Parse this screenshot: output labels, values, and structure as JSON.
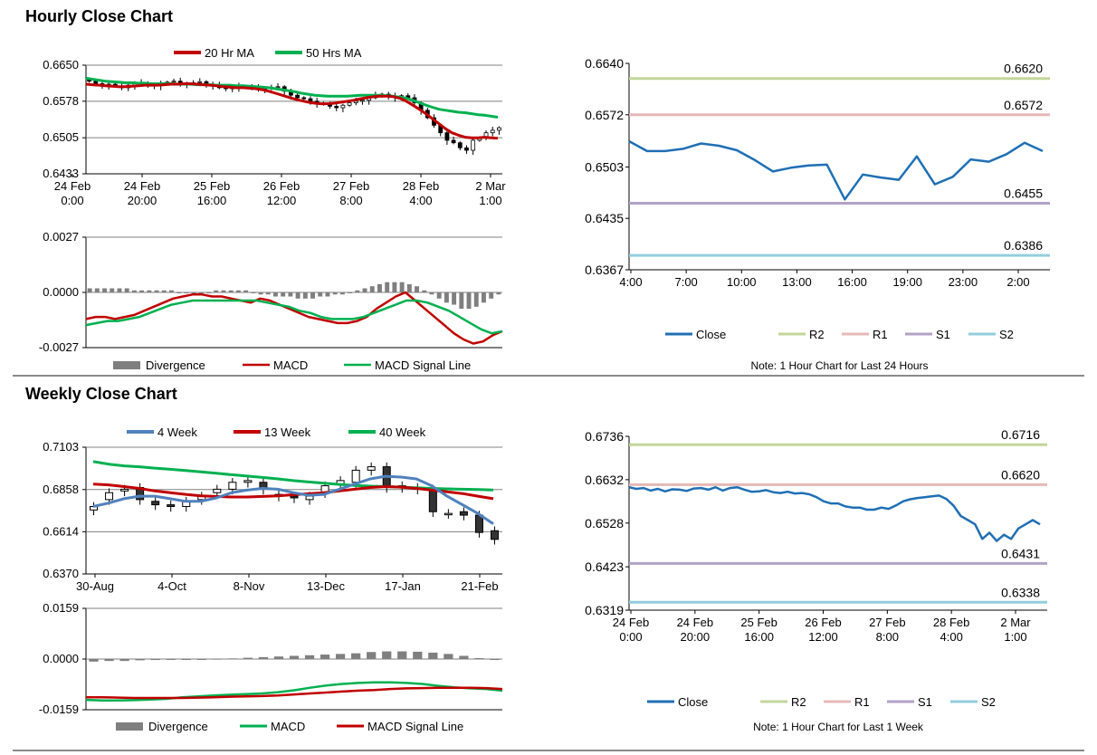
{
  "sections": {
    "hourly_title": "Hourly Close Chart",
    "weekly_title": "Weekly Close Chart"
  },
  "colors": {
    "ma20": "#c00000",
    "ma50": "#00b050",
    "wk4": "#4f81bd",
    "wk13": "#c00000",
    "wk40": "#00b050",
    "close": "#1f6fb4",
    "r2": "#c3d69b",
    "r1": "#e6b9b8",
    "s1": "#b2a2c7",
    "s2": "#93cddd",
    "divergence": "#7f7f7f",
    "macd_red": "#c00000",
    "signal_green": "#00b050"
  },
  "chart_data": [
    {
      "id": "hourly_price",
      "type": "candlestick",
      "title": "",
      "y_ticks": [
        "0.6650",
        "0.6578",
        "0.6505",
        "0.6433"
      ],
      "ylim": [
        0.6433,
        0.665
      ],
      "x_ticks": [
        [
          "24 Feb",
          "0:00"
        ],
        [
          "24 Feb",
          "20:00"
        ],
        [
          "25 Feb",
          "16:00"
        ],
        [
          "26 Feb",
          "12:00"
        ],
        [
          "27 Feb",
          "8:00"
        ],
        [
          "28 Feb",
          "4:00"
        ],
        [
          "2 Mar",
          "1:00"
        ]
      ],
      "legend": [
        "20 Hr MA",
        "50 Hrs MA"
      ],
      "close": [
        0.6618,
        0.6613,
        0.661,
        0.6612,
        0.6608,
        0.6605,
        0.661,
        0.6613,
        0.6615,
        0.661,
        0.6609,
        0.6612,
        0.6616,
        0.6618,
        0.6614,
        0.6613,
        0.6615,
        0.6617,
        0.6612,
        0.661,
        0.6605,
        0.6603,
        0.6606,
        0.6608,
        0.6607,
        0.6605,
        0.6604,
        0.6603,
        0.6606,
        0.6607,
        0.6598,
        0.659,
        0.6585,
        0.6583,
        0.6578,
        0.6574,
        0.6572,
        0.6568,
        0.6565,
        0.657,
        0.6575,
        0.6578,
        0.658,
        0.6585,
        0.659,
        0.6592,
        0.6588,
        0.6586,
        0.6589,
        0.6585,
        0.6575,
        0.656,
        0.6545,
        0.653,
        0.6515,
        0.65,
        0.6495,
        0.6485,
        0.648,
        0.65,
        0.6505,
        0.6515,
        0.652,
        0.6525
      ],
      "ma20": [
        0.6612,
        0.6611,
        0.661,
        0.6609,
        0.6608,
        0.6607,
        0.6607,
        0.6608,
        0.6609,
        0.661,
        0.661,
        0.661,
        0.6611,
        0.6612,
        0.6612,
        0.6613,
        0.6613,
        0.6612,
        0.6611,
        0.661,
        0.6609,
        0.6607,
        0.6606,
        0.6605,
        0.6605,
        0.6604,
        0.6603,
        0.6601,
        0.6598,
        0.6594,
        0.659,
        0.6586,
        0.6582,
        0.6579,
        0.6576,
        0.6574,
        0.6573,
        0.6573,
        0.6574,
        0.6576,
        0.6578,
        0.658,
        0.6583,
        0.6585,
        0.6587,
        0.6588,
        0.6588,
        0.6587,
        0.6584,
        0.6578,
        0.657,
        0.6562,
        0.6553,
        0.6543,
        0.6533,
        0.6523,
        0.6515,
        0.651,
        0.6506,
        0.6505,
        0.6505,
        0.6506,
        0.6505,
        0.6504
      ],
      "ma50": [
        0.6624,
        0.6622,
        0.662,
        0.6618,
        0.6617,
        0.6616,
        0.6615,
        0.6615,
        0.6614,
        0.6614,
        0.6613,
        0.6613,
        0.6613,
        0.6613,
        0.6612,
        0.6612,
        0.6612,
        0.6611,
        0.6611,
        0.6611,
        0.661,
        0.661,
        0.661,
        0.6609,
        0.6609,
        0.6608,
        0.6607,
        0.6606,
        0.6605,
        0.6603,
        0.6601,
        0.6599,
        0.6597,
        0.6594,
        0.6592,
        0.659,
        0.6589,
        0.6588,
        0.6588,
        0.6588,
        0.6588,
        0.6589,
        0.659,
        0.659,
        0.659,
        0.659,
        0.6589,
        0.6588,
        0.6586,
        0.6584,
        0.658,
        0.6575,
        0.657,
        0.6566,
        0.6562,
        0.656,
        0.6558,
        0.6556,
        0.6555,
        0.6553,
        0.6551,
        0.655,
        0.6548,
        0.6546
      ]
    },
    {
      "id": "hourly_macd",
      "type": "line+bar",
      "y_ticks": [
        "0.0027",
        "0.0000",
        "-0.0027"
      ],
      "ylim": [
        -0.0027,
        0.0027
      ],
      "legend": [
        "Divergence",
        "MACD",
        "MACD Signal Line"
      ],
      "divergence": [
        0.0002,
        0.0002,
        0.0002,
        0.0002,
        0.0002,
        0.0002,
        0.0001,
        0.0001,
        0.0001,
        0.0001,
        0.0001,
        0.0001,
        0.0,
        0.0,
        0.0,
        0.0,
        0.0,
        0.0001,
        0.0001,
        0.0001,
        0.0001,
        0.0001,
        0.0,
        -0.0001,
        -0.0001,
        -0.0002,
        -0.0002,
        -0.0002,
        -0.0003,
        -0.0003,
        -0.0003,
        -0.0002,
        -0.0002,
        -0.0001,
        -0.0001,
        0.0,
        0.0001,
        0.0002,
        0.0003,
        0.0004,
        0.0005,
        0.0005,
        0.0005,
        0.0004,
        0.0003,
        0.0001,
        -0.0001,
        -0.0003,
        -0.0005,
        -0.0006,
        -0.0008,
        -0.0008,
        -0.0007,
        -0.0005,
        -0.0003,
        -0.0001
      ],
      "macd": [
        -0.0013,
        -0.0012,
        -0.0012,
        -0.0013,
        -0.0012,
        -0.0011,
        -0.0009,
        -0.0007,
        -0.0005,
        -0.0003,
        -0.0002,
        -0.0001,
        -0.0001,
        -0.0002,
        -0.0002,
        -0.0003,
        -0.0004,
        -0.0005,
        -0.0003,
        -0.0004,
        -0.0006,
        -0.0008,
        -0.001,
        -0.0012,
        -0.0013,
        -0.0014,
        -0.0015,
        -0.0015,
        -0.0014,
        -0.0012,
        -0.0008,
        -0.0005,
        -0.0002,
        0.0,
        -0.0004,
        -0.0008,
        -0.0012,
        -0.0016,
        -0.002,
        -0.0023,
        -0.0025,
        -0.0024,
        -0.0021,
        -0.0019
      ],
      "signal": [
        -0.0016,
        -0.0015,
        -0.0014,
        -0.0014,
        -0.0013,
        -0.0012,
        -0.001,
        -0.0008,
        -0.0006,
        -0.0005,
        -0.0004,
        -0.0004,
        -0.0004,
        -0.0004,
        -0.0004,
        -0.0004,
        -0.0004,
        -0.0005,
        -0.0006,
        -0.0007,
        -0.0009,
        -0.001,
        -0.0012,
        -0.0013,
        -0.0013,
        -0.0013,
        -0.0012,
        -0.001,
        -0.0008,
        -0.0006,
        -0.0004,
        -0.0004,
        -0.0005,
        -0.0007,
        -0.0009,
        -0.0012,
        -0.0015,
        -0.0018,
        -0.002,
        -0.0019
      ]
    },
    {
      "id": "hourly_close",
      "type": "line",
      "y_ticks": [
        "0.6640",
        "0.6572",
        "0.6503",
        "0.6435",
        "0.6367"
      ],
      "ylim": [
        0.6367,
        0.664
      ],
      "x_ticks": [
        "4:00",
        "7:00",
        "10:00",
        "13:00",
        "16:00",
        "19:00",
        "23:00",
        "2:00"
      ],
      "legend": [
        "Close",
        "R2",
        "R1",
        "S1",
        "S2"
      ],
      "levels": {
        "R2": 0.662,
        "R1": 0.6572,
        "S1": 0.6455,
        "S2": 0.6386
      },
      "level_labels": {
        "R2": "0.6620",
        "R1": "0.6572",
        "S1": "0.6455",
        "S2": "0.6386"
      },
      "close": [
        0.6537,
        0.6524,
        0.6524,
        0.6527,
        0.6534,
        0.6531,
        0.6525,
        0.6512,
        0.6497,
        0.6502,
        0.6505,
        0.6506,
        0.646,
        0.6493,
        0.6489,
        0.6486,
        0.6517,
        0.648,
        0.649,
        0.6513,
        0.651,
        0.652,
        0.6535,
        0.6524
      ],
      "note": "Note: 1 Hour Chart for Last 24 Hours"
    },
    {
      "id": "weekly_price",
      "type": "candlestick",
      "y_ticks": [
        "0.7103",
        "0.6858",
        "0.6614",
        "0.6370"
      ],
      "ylim": [
        0.637,
        0.7103
      ],
      "x_ticks": [
        "30-Aug",
        "4-Oct",
        "8-Nov",
        "13-Dec",
        "17-Jan",
        "21-Feb"
      ],
      "legend": [
        "4 Week",
        "13 Week",
        "40 Week"
      ],
      "open": [
        0.674,
        0.68,
        0.685,
        0.687,
        0.679,
        0.677,
        0.676,
        0.68,
        0.684,
        0.686,
        0.69,
        0.69,
        0.683,
        0.682,
        0.68,
        0.684,
        0.689,
        0.69,
        0.697,
        0.699,
        0.688,
        0.687,
        0.686,
        0.672,
        0.673,
        0.671,
        0.662
      ],
      "close": [
        0.676,
        0.684,
        0.686,
        0.68,
        0.677,
        0.676,
        0.679,
        0.682,
        0.686,
        0.69,
        0.691,
        0.686,
        0.682,
        0.681,
        0.682,
        0.688,
        0.691,
        0.697,
        0.699,
        0.687,
        0.687,
        0.686,
        0.673,
        0.672,
        0.671,
        0.661,
        0.657
      ],
      "wk4": [
        0.676,
        0.678,
        0.6805,
        0.682,
        0.682,
        0.6805,
        0.679,
        0.679,
        0.681,
        0.684,
        0.6855,
        0.6865,
        0.686,
        0.684,
        0.6825,
        0.683,
        0.686,
        0.689,
        0.692,
        0.6935,
        0.693,
        0.692,
        0.688,
        0.682,
        0.677,
        0.672,
        0.666
      ],
      "wk13": [
        0.689,
        0.6885,
        0.6875,
        0.6865,
        0.685,
        0.684,
        0.683,
        0.6822,
        0.6818,
        0.6815,
        0.6815,
        0.6818,
        0.6822,
        0.6828,
        0.6834,
        0.684,
        0.685,
        0.686,
        0.687,
        0.6875,
        0.6872,
        0.6865,
        0.6855,
        0.6845,
        0.6835,
        0.682,
        0.6805
      ],
      "wk40": [
        0.702,
        0.7005,
        0.6995,
        0.699,
        0.6982,
        0.6975,
        0.6968,
        0.696,
        0.6952,
        0.6944,
        0.6936,
        0.6928,
        0.692,
        0.691,
        0.6902,
        0.6895,
        0.6888,
        0.6882,
        0.6878,
        0.6875,
        0.6872,
        0.6868,
        0.6865,
        0.6862,
        0.686,
        0.6858,
        0.6856
      ]
    },
    {
      "id": "weekly_macd",
      "type": "line+bar",
      "y_ticks": [
        "0.0159",
        "0.0000",
        "-0.0159"
      ],
      "ylim": [
        -0.0159,
        0.0159
      ],
      "legend": [
        "Divergence",
        "MACD",
        "MACD Signal Line"
      ],
      "divergence": [
        -0.0008,
        -0.0006,
        -0.0006,
        -0.0004,
        -0.0003,
        -0.0002,
        -0.0001,
        0.0,
        0.0001,
        0.0002,
        0.0004,
        0.0006,
        0.0008,
        0.001,
        0.0012,
        0.0014,
        0.0016,
        0.0018,
        0.0022,
        0.0024,
        0.0024,
        0.0023,
        0.002,
        0.0016,
        0.001,
        0.0003,
        -0.0003
      ],
      "macd": [
        -0.0128,
        -0.013,
        -0.013,
        -0.0129,
        -0.0127,
        -0.0125,
        -0.012,
        -0.0117,
        -0.0114,
        -0.0112,
        -0.011,
        -0.0108,
        -0.0104,
        -0.0098,
        -0.009,
        -0.0083,
        -0.0078,
        -0.0075,
        -0.0073,
        -0.0073,
        -0.0075,
        -0.0078,
        -0.0084,
        -0.0089,
        -0.0092,
        -0.0094,
        -0.0099
      ],
      "signal": [
        -0.012,
        -0.012,
        -0.0121,
        -0.0122,
        -0.0122,
        -0.0122,
        -0.0122,
        -0.0121,
        -0.012,
        -0.0118,
        -0.0117,
        -0.0116,
        -0.0114,
        -0.0111,
        -0.0108,
        -0.0105,
        -0.0102,
        -0.0099,
        -0.0097,
        -0.0094,
        -0.0092,
        -0.0091,
        -0.009,
        -0.009,
        -0.009,
        -0.0091,
        -0.0094
      ]
    },
    {
      "id": "weekly_close",
      "type": "line",
      "y_ticks": [
        "0.6736",
        "0.6632",
        "0.6528",
        "0.6423",
        "0.6319"
      ],
      "ylim": [
        0.6319,
        0.6736
      ],
      "x_ticks": [
        [
          "24 Feb",
          "0:00"
        ],
        [
          "24 Feb",
          "20:00"
        ],
        [
          "25 Feb",
          "16:00"
        ],
        [
          "26 Feb",
          "12:00"
        ],
        [
          "27 Feb",
          "8:00"
        ],
        [
          "28 Feb",
          "4:00"
        ],
        [
          "2 Mar",
          "1:00"
        ]
      ],
      "legend": [
        "Close",
        "R2",
        "R1",
        "S1",
        "S2"
      ],
      "levels": {
        "R2": 0.6716,
        "R1": 0.662,
        "S1": 0.6431,
        "S2": 0.6338
      },
      "level_labels": {
        "R2": "0.6716",
        "R1": "0.6620",
        "S1": "0.6431",
        "S2": "0.6338"
      },
      "close": [
        0.6614,
        0.661,
        0.6612,
        0.6606,
        0.661,
        0.6604,
        0.6609,
        0.6608,
        0.6605,
        0.6611,
        0.6612,
        0.6608,
        0.6614,
        0.6606,
        0.6612,
        0.6614,
        0.6608,
        0.6603,
        0.6604,
        0.6607,
        0.6602,
        0.66,
        0.6603,
        0.6599,
        0.66,
        0.6597,
        0.659,
        0.658,
        0.6575,
        0.6575,
        0.6568,
        0.6565,
        0.6565,
        0.656,
        0.656,
        0.6565,
        0.6562,
        0.657,
        0.658,
        0.6585,
        0.6588,
        0.659,
        0.6592,
        0.6594,
        0.6586,
        0.657,
        0.6545,
        0.6535,
        0.6525,
        0.649,
        0.6505,
        0.6485,
        0.65,
        0.649,
        0.6515,
        0.6525,
        0.6535,
        0.6525
      ],
      "note": "Note: 1 Hour Chart for Last 1 Week"
    }
  ]
}
